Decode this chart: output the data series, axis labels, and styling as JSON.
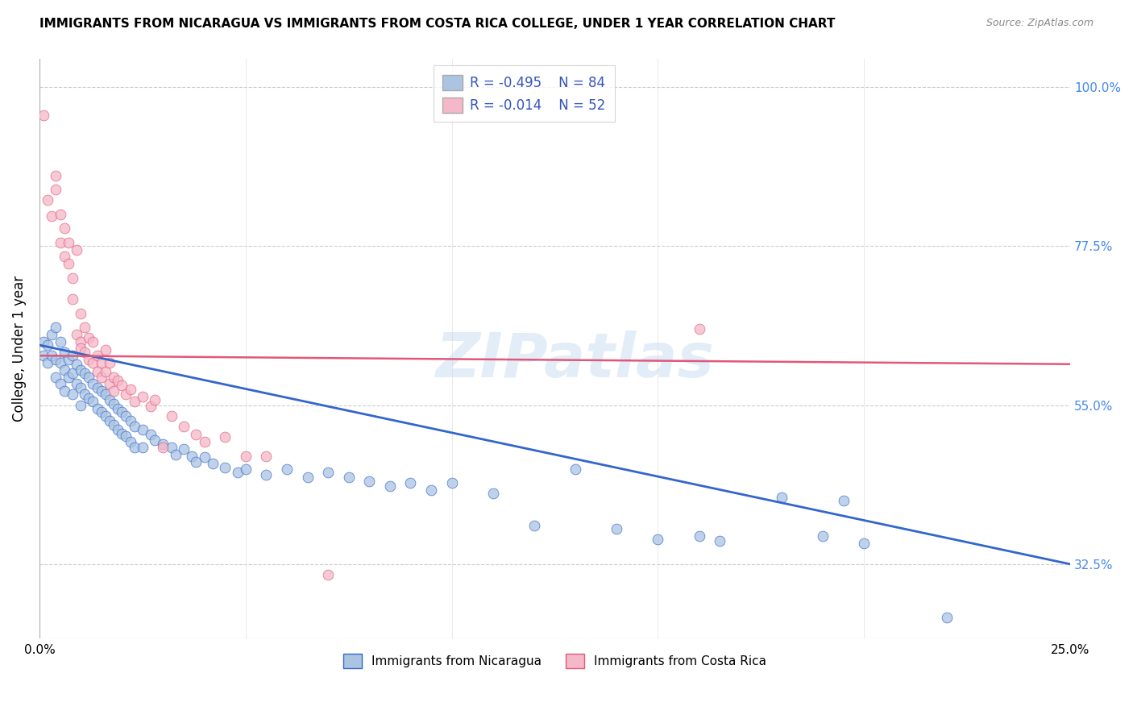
{
  "title": "IMMIGRANTS FROM NICARAGUA VS IMMIGRANTS FROM COSTA RICA COLLEGE, UNDER 1 YEAR CORRELATION CHART",
  "source": "Source: ZipAtlas.com",
  "ylabel": "College, Under 1 year",
  "ylabel_ticks": [
    "100.0%",
    "77.5%",
    "55.0%",
    "32.5%"
  ],
  "ylabel_tick_vals": [
    1.0,
    0.775,
    0.55,
    0.325
  ],
  "xmin": 0.0,
  "xmax": 0.25,
  "ymin": 0.22,
  "ymax": 1.04,
  "legend1_r": "R = -0.495",
  "legend1_n": "N = 84",
  "legend2_r": "R = -0.014",
  "legend2_n": "N = 52",
  "blue_color": "#aac4e2",
  "pink_color": "#f5b8c8",
  "blue_line_color": "#3366cc",
  "pink_line_color": "#e05878",
  "blue_scatter": [
    [
      0.001,
      0.64
    ],
    [
      0.001,
      0.62
    ],
    [
      0.002,
      0.635
    ],
    [
      0.002,
      0.61
    ],
    [
      0.003,
      0.65
    ],
    [
      0.003,
      0.62
    ],
    [
      0.004,
      0.66
    ],
    [
      0.004,
      0.615
    ],
    [
      0.004,
      0.59
    ],
    [
      0.005,
      0.64
    ],
    [
      0.005,
      0.61
    ],
    [
      0.005,
      0.58
    ],
    [
      0.006,
      0.625
    ],
    [
      0.006,
      0.6
    ],
    [
      0.006,
      0.57
    ],
    [
      0.007,
      0.615
    ],
    [
      0.007,
      0.59
    ],
    [
      0.008,
      0.62
    ],
    [
      0.008,
      0.595
    ],
    [
      0.008,
      0.565
    ],
    [
      0.009,
      0.608
    ],
    [
      0.009,
      0.58
    ],
    [
      0.01,
      0.6
    ],
    [
      0.01,
      0.575
    ],
    [
      0.01,
      0.55
    ],
    [
      0.011,
      0.595
    ],
    [
      0.011,
      0.565
    ],
    [
      0.012,
      0.59
    ],
    [
      0.012,
      0.56
    ],
    [
      0.013,
      0.58
    ],
    [
      0.013,
      0.555
    ],
    [
      0.014,
      0.575
    ],
    [
      0.014,
      0.545
    ],
    [
      0.015,
      0.57
    ],
    [
      0.015,
      0.54
    ],
    [
      0.016,
      0.565
    ],
    [
      0.016,
      0.535
    ],
    [
      0.017,
      0.558
    ],
    [
      0.017,
      0.528
    ],
    [
      0.018,
      0.552
    ],
    [
      0.018,
      0.522
    ],
    [
      0.019,
      0.545
    ],
    [
      0.019,
      0.515
    ],
    [
      0.02,
      0.54
    ],
    [
      0.02,
      0.51
    ],
    [
      0.021,
      0.535
    ],
    [
      0.021,
      0.506
    ],
    [
      0.022,
      0.528
    ],
    [
      0.022,
      0.498
    ],
    [
      0.023,
      0.52
    ],
    [
      0.023,
      0.49
    ],
    [
      0.025,
      0.515
    ],
    [
      0.025,
      0.49
    ],
    [
      0.027,
      0.508
    ],
    [
      0.028,
      0.5
    ],
    [
      0.03,
      0.495
    ],
    [
      0.032,
      0.49
    ],
    [
      0.033,
      0.48
    ],
    [
      0.035,
      0.488
    ],
    [
      0.037,
      0.478
    ],
    [
      0.038,
      0.47
    ],
    [
      0.04,
      0.476
    ],
    [
      0.042,
      0.468
    ],
    [
      0.045,
      0.462
    ],
    [
      0.048,
      0.455
    ],
    [
      0.05,
      0.46
    ],
    [
      0.055,
      0.452
    ],
    [
      0.06,
      0.46
    ],
    [
      0.065,
      0.448
    ],
    [
      0.07,
      0.455
    ],
    [
      0.075,
      0.448
    ],
    [
      0.08,
      0.442
    ],
    [
      0.085,
      0.435
    ],
    [
      0.09,
      0.44
    ],
    [
      0.095,
      0.43
    ],
    [
      0.1,
      0.44
    ],
    [
      0.11,
      0.425
    ],
    [
      0.12,
      0.38
    ],
    [
      0.13,
      0.46
    ],
    [
      0.14,
      0.375
    ],
    [
      0.15,
      0.36
    ],
    [
      0.16,
      0.365
    ],
    [
      0.165,
      0.358
    ],
    [
      0.18,
      0.42
    ],
    [
      0.19,
      0.365
    ],
    [
      0.195,
      0.415
    ],
    [
      0.2,
      0.355
    ],
    [
      0.22,
      0.25
    ]
  ],
  "pink_scatter": [
    [
      0.001,
      0.96
    ],
    [
      0.002,
      0.84
    ],
    [
      0.003,
      0.818
    ],
    [
      0.004,
      0.875
    ],
    [
      0.004,
      0.855
    ],
    [
      0.005,
      0.82
    ],
    [
      0.005,
      0.78
    ],
    [
      0.006,
      0.8
    ],
    [
      0.006,
      0.76
    ],
    [
      0.007,
      0.78
    ],
    [
      0.007,
      0.75
    ],
    [
      0.008,
      0.73
    ],
    [
      0.008,
      0.7
    ],
    [
      0.009,
      0.77
    ],
    [
      0.009,
      0.65
    ],
    [
      0.01,
      0.68
    ],
    [
      0.01,
      0.64
    ],
    [
      0.01,
      0.63
    ],
    [
      0.011,
      0.66
    ],
    [
      0.011,
      0.625
    ],
    [
      0.012,
      0.645
    ],
    [
      0.012,
      0.615
    ],
    [
      0.013,
      0.64
    ],
    [
      0.013,
      0.61
    ],
    [
      0.014,
      0.62
    ],
    [
      0.014,
      0.598
    ],
    [
      0.015,
      0.61
    ],
    [
      0.015,
      0.59
    ],
    [
      0.016,
      0.628
    ],
    [
      0.016,
      0.598
    ],
    [
      0.017,
      0.61
    ],
    [
      0.017,
      0.58
    ],
    [
      0.018,
      0.59
    ],
    [
      0.018,
      0.57
    ],
    [
      0.019,
      0.585
    ],
    [
      0.02,
      0.578
    ],
    [
      0.021,
      0.565
    ],
    [
      0.022,
      0.572
    ],
    [
      0.023,
      0.555
    ],
    [
      0.025,
      0.562
    ],
    [
      0.027,
      0.548
    ],
    [
      0.028,
      0.558
    ],
    [
      0.03,
      0.49
    ],
    [
      0.032,
      0.535
    ],
    [
      0.035,
      0.52
    ],
    [
      0.038,
      0.508
    ],
    [
      0.04,
      0.498
    ],
    [
      0.045,
      0.505
    ],
    [
      0.05,
      0.478
    ],
    [
      0.055,
      0.478
    ],
    [
      0.16,
      0.658
    ],
    [
      0.07,
      0.31
    ]
  ],
  "blue_line_x": [
    0.0,
    0.25
  ],
  "blue_line_y": [
    0.635,
    0.325
  ],
  "pink_line_x": [
    0.0,
    0.25
  ],
  "pink_line_y": [
    0.62,
    0.608
  ],
  "watermark": "ZIPatlas",
  "marker_size": 85,
  "grid_color": "#cccccc",
  "background_color": "#ffffff"
}
